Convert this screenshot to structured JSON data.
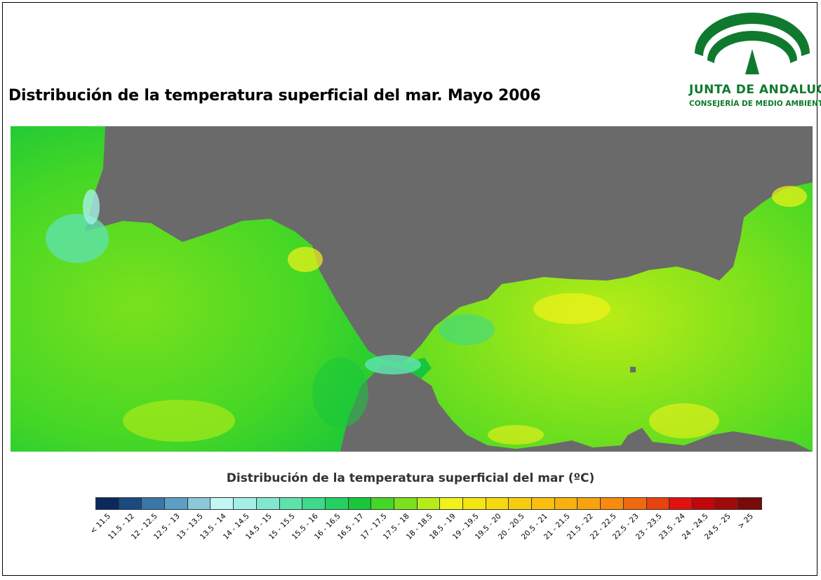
{
  "title": "Distribución de la temperatura superficial del mar. Mayo 2006",
  "logo": {
    "name": "JUNTA DE ANDALUCIA",
    "subtitle": "CONSEJERÍA DE MEDIO AMBIENTE",
    "color": "#0f7a2e"
  },
  "map": {
    "land_color": "#6a6a6a",
    "region": "Gulf of Cadiz, Strait of Gibraltar and Alboran Sea"
  },
  "legend": {
    "title": "Distribución de la temperatura superficial del mar (ºC)",
    "classes": [
      {
        "label": "< 11.5",
        "color": "#0b2a5b"
      },
      {
        "label": "11.5 - 12",
        "color": "#1c4a80"
      },
      {
        "label": "12 - 12.5",
        "color": "#3a76a6"
      },
      {
        "label": "12.5 - 13",
        "color": "#5d9ec4"
      },
      {
        "label": "13 - 13.5",
        "color": "#8cc8dc"
      },
      {
        "label": "13.5 - 14",
        "color": "#c3f5f5"
      },
      {
        "label": "14 - 14.5",
        "color": "#a4f0e6"
      },
      {
        "label": "14.5 - 15",
        "color": "#80e8cc"
      },
      {
        "label": "15 - 15.5",
        "color": "#5ee2ab"
      },
      {
        "label": "15.5 - 16",
        "color": "#3ed98a"
      },
      {
        "label": "16 - 16.5",
        "color": "#25d062"
      },
      {
        "label": "16.5 - 17",
        "color": "#17c63a"
      },
      {
        "label": "17 - 17.5",
        "color": "#45d726"
      },
      {
        "label": "17.5 - 18",
        "color": "#7ae11c"
      },
      {
        "label": "18 - 18.5",
        "color": "#b8ec17"
      },
      {
        "label": "18.5 - 19",
        "color": "#f2f21a"
      },
      {
        "label": "19 - 19.5",
        "color": "#f4e612"
      },
      {
        "label": "19.5 - 20",
        "color": "#f5d90f"
      },
      {
        "label": "20 - 20.5",
        "color": "#f7cc0f"
      },
      {
        "label": "20.5 - 21",
        "color": "#f8bf0f"
      },
      {
        "label": "21 - 21.5",
        "color": "#f9b10f"
      },
      {
        "label": "21.5 - 22",
        "color": "#f9a20f"
      },
      {
        "label": "22 - 22.5",
        "color": "#f78a0f"
      },
      {
        "label": "22.5 - 23",
        "color": "#ef6a0f"
      },
      {
        "label": "23 - 23.5",
        "color": "#e8420f"
      },
      {
        "label": "23.5 - 24",
        "color": "#e0110f"
      },
      {
        "label": "24 - 24.5",
        "color": "#c2060b"
      },
      {
        "label": "24.5 - 25",
        "color": "#a10a0a"
      },
      {
        "label": "> 25",
        "color": "#7a0a0a"
      }
    ]
  }
}
